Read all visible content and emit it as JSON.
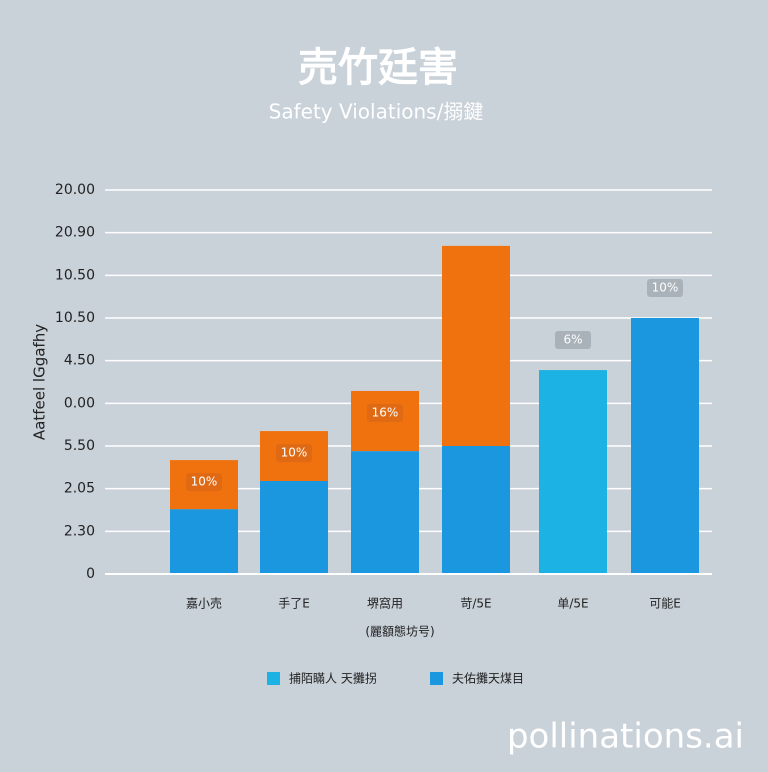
{
  "chart_data": {
    "type": "bar",
    "stacked": true,
    "title": "売竹廷害",
    "subtitle": "Safety Violations/搦鍵",
    "y_label": "Aatfeel lGgafhy",
    "x_label": "(麗額態坊号)",
    "categories": [
      "嘉小売",
      "手了E",
      "堺窩用",
      "苛/5E",
      "单/5E",
      "可能E"
    ],
    "series": [
      {
        "name": "捕陌瞞人 天攤拐",
        "color": "#1cb3e4",
        "values": [
          null,
          null,
          null,
          null,
          4.78,
          null
        ]
      },
      {
        "name": "夫佑攤天煤目",
        "color": "#1a97de",
        "values": [
          1.52,
          2.18,
          2.88,
          3.0,
          null,
          6.0
        ]
      },
      {
        "color": "#f0720f",
        "values": [
          1.15,
          1.17,
          1.41,
          4.69,
          null,
          null
        ]
      }
    ],
    "annotations": [
      "10%",
      "10%",
      "16%",
      "6%",
      "10%"
    ],
    "ylim": [
      0,
      9
    ],
    "yticks": [
      {
        "value": 0,
        "label": "0"
      },
      {
        "value": 1,
        "label": "2.30"
      },
      {
        "value": 2,
        "label": "2.05"
      },
      {
        "value": 3,
        "label": "5.50"
      },
      {
        "value": 4,
        "label": "0.00"
      },
      {
        "value": 5,
        "label": "4.50"
      },
      {
        "value": 6,
        "label": "10.50"
      },
      {
        "value": 7,
        "label": "10.50"
      },
      {
        "value": 8,
        "label": "20.90"
      },
      {
        "value": 9,
        "label": "20.00"
      }
    ],
    "grid": true,
    "legend": "bottom",
    "watermark": "pollinations.ai"
  }
}
